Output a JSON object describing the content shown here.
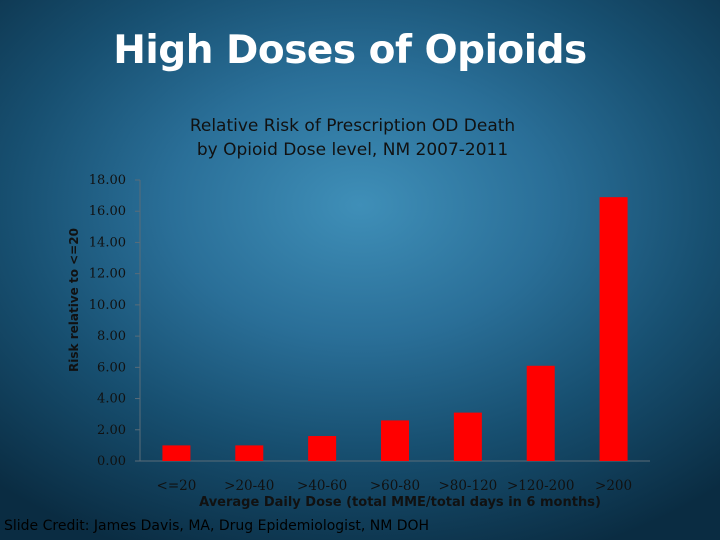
{
  "slide": {
    "title": "High Doses of Opioids",
    "credit": "Slide Credit: James Davis, MA, Drug Epidemiologist, NM DOH"
  },
  "chart_data": {
    "type": "bar",
    "title_lines": [
      "Relative Risk of Prescription OD Death",
      "by Opioid Dose level, NM 2007-2011"
    ],
    "xlabel": "Average Daily Dose (total MME/total days in 6 months)",
    "ylabel": "Risk relative to <=20",
    "categories": [
      "<=20",
      ">20-40",
      ">40-60",
      ">60-80",
      ">80-120",
      ">120-200",
      ">200"
    ],
    "values": [
      1.0,
      1.0,
      1.6,
      2.6,
      3.1,
      6.1,
      16.9
    ],
    "yticks": [
      "0.00",
      "2.00",
      "4.00",
      "6.00",
      "8.00",
      "10.00",
      "12.00",
      "14.00",
      "16.00",
      "18.00"
    ],
    "ylim": [
      0,
      18
    ],
    "grid": false,
    "bar_color": "#ff0000"
  }
}
